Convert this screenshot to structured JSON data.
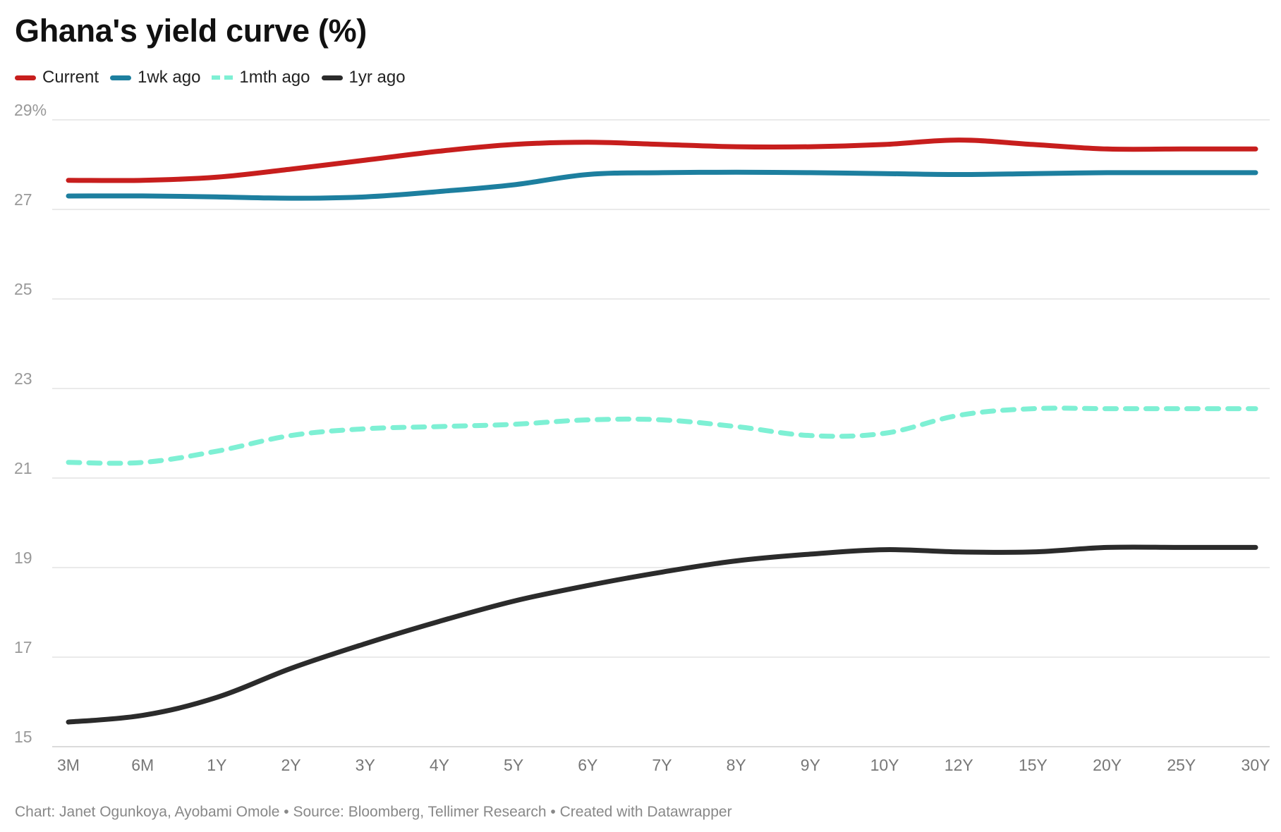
{
  "chart_data": {
    "type": "line",
    "title": "Ghana's yield curve (%)",
    "categories": [
      "3M",
      "6M",
      "1Y",
      "2Y",
      "3Y",
      "4Y",
      "5Y",
      "6Y",
      "7Y",
      "8Y",
      "9Y",
      "10Y",
      "12Y",
      "15Y",
      "20Y",
      "25Y",
      "30Y"
    ],
    "y_ticks": [
      {
        "value": 29,
        "label": "29%"
      },
      {
        "value": 27,
        "label": "27"
      },
      {
        "value": 25,
        "label": "25"
      },
      {
        "value": 23,
        "label": "23"
      },
      {
        "value": 21,
        "label": "21"
      },
      {
        "value": 19,
        "label": "19"
      },
      {
        "value": 17,
        "label": "17"
      },
      {
        "value": 15,
        "label": "15"
      }
    ],
    "ylim": [
      15,
      29
    ],
    "grid": true,
    "legend_position": "top-left",
    "series": [
      {
        "name": "Current",
        "color": "#c71e1d",
        "dashed": false,
        "values": [
          27.65,
          27.65,
          27.72,
          27.9,
          28.1,
          28.3,
          28.45,
          28.5,
          28.45,
          28.4,
          28.4,
          28.45,
          28.55,
          28.45,
          28.35,
          28.35,
          28.35
        ]
      },
      {
        "name": "1wk ago",
        "color": "#1d7f9f",
        "dashed": false,
        "values": [
          27.3,
          27.3,
          27.28,
          27.25,
          27.28,
          27.4,
          27.55,
          27.78,
          27.82,
          27.83,
          27.82,
          27.8,
          27.78,
          27.8,
          27.82,
          27.82,
          27.82
        ]
      },
      {
        "name": "1mth ago",
        "color": "#7ef0d4",
        "dashed": true,
        "values": [
          21.35,
          21.35,
          21.6,
          21.95,
          22.1,
          22.15,
          22.2,
          22.3,
          22.3,
          22.15,
          21.95,
          22.0,
          22.4,
          22.55,
          22.55,
          22.55,
          22.55
        ]
      },
      {
        "name": "1yr ago",
        "color": "#2b2b2b",
        "dashed": false,
        "values": [
          15.55,
          15.7,
          16.1,
          16.75,
          17.3,
          17.8,
          18.25,
          18.6,
          18.9,
          19.15,
          19.3,
          19.4,
          19.35,
          19.35,
          19.45,
          19.45,
          19.45
        ]
      }
    ]
  },
  "footer": {
    "text": "Chart: Janet Ogunkoya, Ayobami Omole • Source: Bloomberg, Tellimer Research • Created with Datawrapper"
  }
}
